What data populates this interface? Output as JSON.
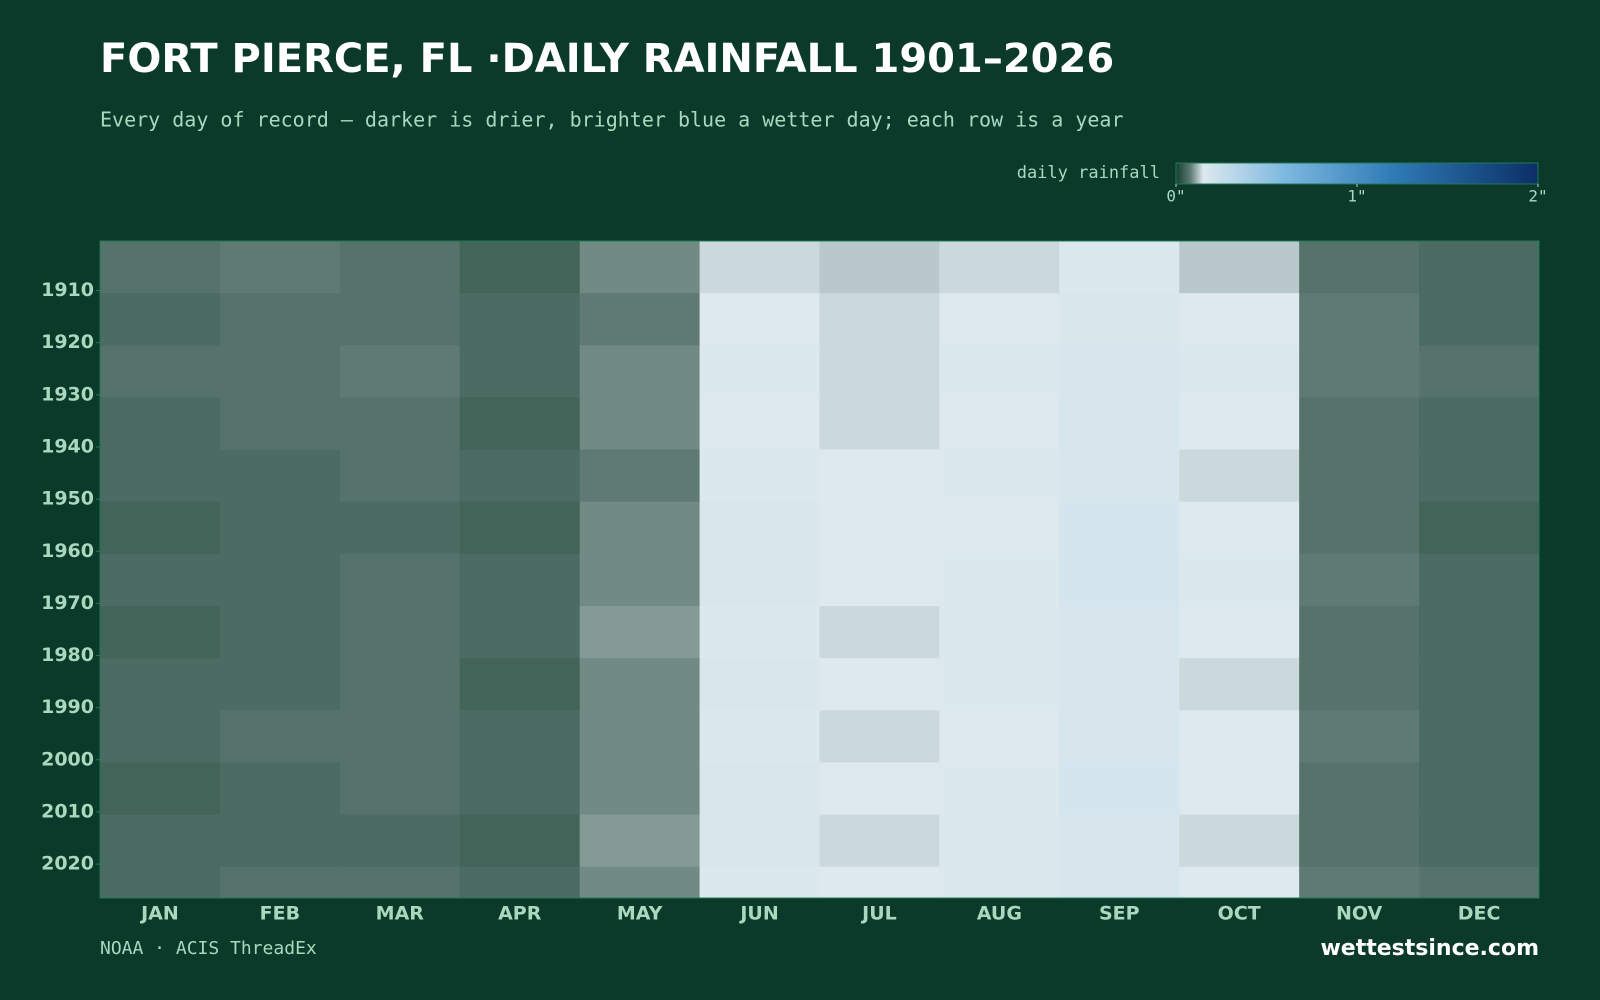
{
  "chart_data": {
    "type": "heatmap",
    "title": "FORT PIERCE, FL ·DAILY RAINFALL 1901–2026",
    "subtitle": "Every day of record — darker is drier, brighter blue a wetter day; each row is a year",
    "categories": [
      "JAN",
      "FEB",
      "MAR",
      "APR",
      "MAY",
      "JUN",
      "JUL",
      "AUG",
      "SEP",
      "OCT",
      "NOV",
      "DEC"
    ],
    "y_bins": [
      1901,
      1911,
      1921,
      1931,
      1941,
      1951,
      1961,
      1971,
      1981,
      1991,
      2001,
      2011,
      2021,
      2027
    ],
    "values": [
      [
        0.07,
        0.08,
        0.07,
        0.05,
        0.09,
        0.14,
        0.13,
        0.14,
        0.16,
        0.13,
        0.07,
        0.06
      ],
      [
        0.06,
        0.07,
        0.07,
        0.06,
        0.08,
        0.15,
        0.14,
        0.15,
        0.17,
        0.15,
        0.08,
        0.06
      ],
      [
        0.07,
        0.07,
        0.08,
        0.06,
        0.09,
        0.16,
        0.14,
        0.16,
        0.18,
        0.16,
        0.08,
        0.07
      ],
      [
        0.06,
        0.07,
        0.07,
        0.05,
        0.09,
        0.15,
        0.14,
        0.15,
        0.18,
        0.15,
        0.07,
        0.06
      ],
      [
        0.06,
        0.06,
        0.07,
        0.06,
        0.08,
        0.16,
        0.15,
        0.16,
        0.18,
        0.14,
        0.07,
        0.06
      ],
      [
        0.05,
        0.06,
        0.06,
        0.05,
        0.09,
        0.17,
        0.15,
        0.15,
        0.19,
        0.15,
        0.07,
        0.05
      ],
      [
        0.06,
        0.06,
        0.07,
        0.06,
        0.09,
        0.17,
        0.15,
        0.16,
        0.19,
        0.16,
        0.08,
        0.06
      ],
      [
        0.05,
        0.06,
        0.07,
        0.06,
        0.1,
        0.16,
        0.14,
        0.16,
        0.18,
        0.15,
        0.07,
        0.06
      ],
      [
        0.06,
        0.06,
        0.07,
        0.05,
        0.09,
        0.17,
        0.15,
        0.16,
        0.18,
        0.14,
        0.07,
        0.06
      ],
      [
        0.06,
        0.07,
        0.07,
        0.06,
        0.09,
        0.16,
        0.14,
        0.15,
        0.18,
        0.15,
        0.08,
        0.06
      ],
      [
        0.05,
        0.06,
        0.07,
        0.06,
        0.09,
        0.17,
        0.15,
        0.16,
        0.19,
        0.15,
        0.07,
        0.06
      ],
      [
        0.06,
        0.06,
        0.06,
        0.05,
        0.1,
        0.17,
        0.14,
        0.16,
        0.18,
        0.14,
        0.07,
        0.06
      ],
      [
        0.06,
        0.07,
        0.07,
        0.06,
        0.09,
        0.16,
        0.15,
        0.16,
        0.18,
        0.15,
        0.08,
        0.07
      ]
    ],
    "ylim": [
      1901,
      2027
    ],
    "yticks": [
      1910,
      1920,
      1930,
      1940,
      1950,
      1960,
      1970,
      1980,
      1990,
      2000,
      2010,
      2020
    ],
    "legend_label": "daily rainfall",
    "zlim": [
      0,
      2
    ],
    "zticks": [
      {
        "value": 0,
        "label": "0\""
      },
      {
        "value": 1,
        "label": "1\""
      },
      {
        "value": 2,
        "label": "2\""
      }
    ],
    "colorscale": [
      [
        0,
        "#123f30"
      ],
      [
        0.08,
        "#5f7a72"
      ],
      [
        0.15,
        "#dde9ee"
      ],
      [
        0.6,
        "#7db8e0"
      ],
      [
        1.2,
        "#2f7bb5"
      ],
      [
        2,
        "#0b2f66"
      ]
    ],
    "source": "NOAA · ACIS ThreadEx",
    "brand": "wettestsince.com"
  }
}
